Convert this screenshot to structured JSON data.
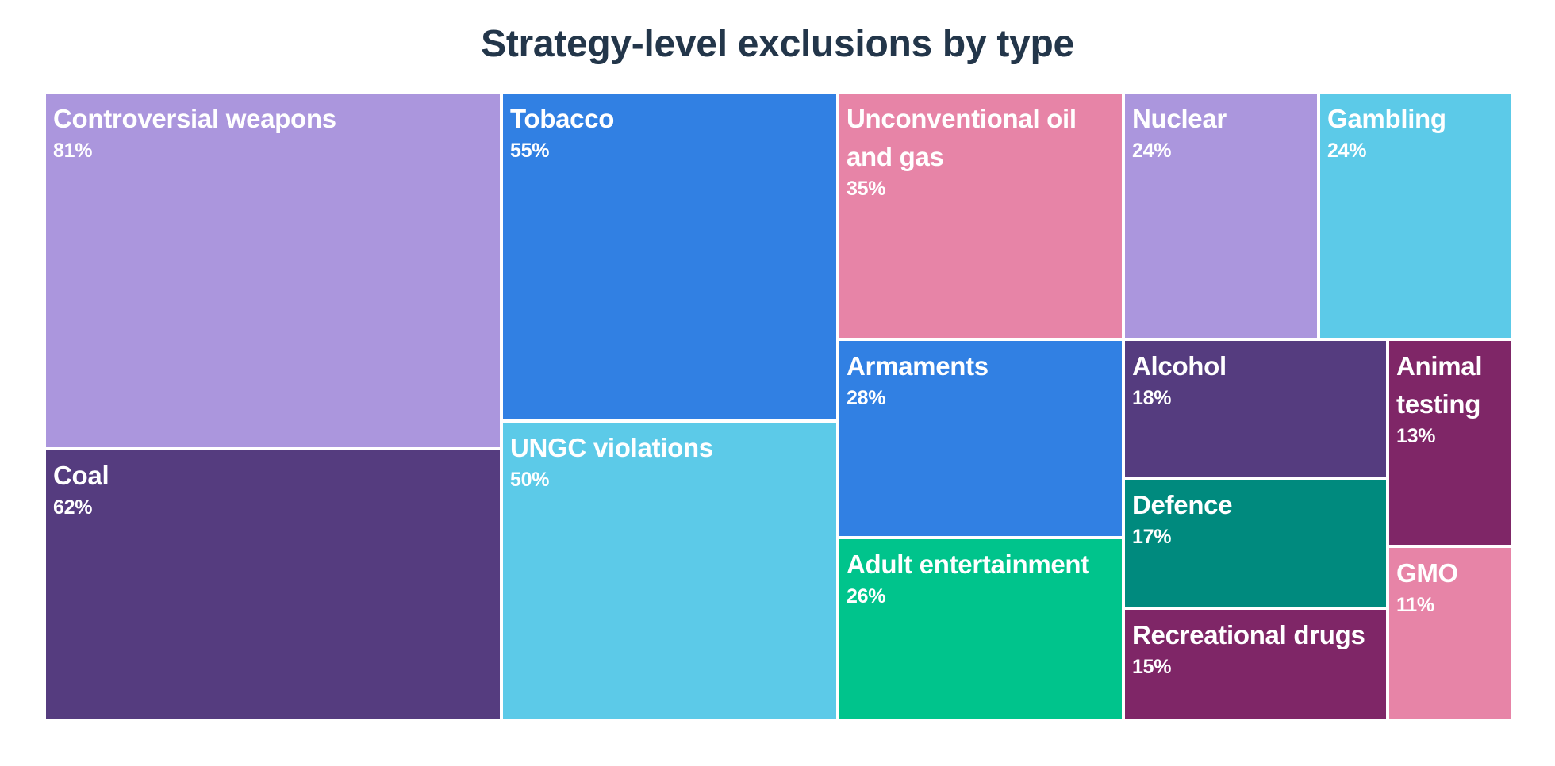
{
  "title": "Strategy-level exclusions by type",
  "chart_data": {
    "type": "treemap",
    "title": "Strategy-level exclusions by type",
    "value_unit": "%",
    "items": [
      {
        "key": "controversial-weapons",
        "label": [
          "Controversial weapons"
        ],
        "value": 81,
        "display": "81%",
        "color": "#ab96dd"
      },
      {
        "key": "coal",
        "label": [
          "Coal"
        ],
        "value": 62,
        "display": "62%",
        "color": "#553c7f"
      },
      {
        "key": "tobacco",
        "label": [
          "Tobacco"
        ],
        "value": 55,
        "display": "55%",
        "color": "#3180e3"
      },
      {
        "key": "ungc-violations",
        "label": [
          "UNGC violations"
        ],
        "value": 50,
        "display": "50%",
        "color": "#5ccae8"
      },
      {
        "key": "unconventional-oil-and-gas",
        "label": [
          "Unconventional oil",
          "and gas"
        ],
        "value": 35,
        "display": "35%",
        "color": "#e784a7"
      },
      {
        "key": "nuclear",
        "label": [
          "Nuclear"
        ],
        "value": 24,
        "display": "24%",
        "color": "#ab96dd"
      },
      {
        "key": "gambling",
        "label": [
          "Gambling"
        ],
        "value": 24,
        "display": "24%",
        "color": "#5ccae8"
      },
      {
        "key": "armaments",
        "label": [
          "Armaments"
        ],
        "value": 28,
        "display": "28%",
        "color": "#3180e3"
      },
      {
        "key": "adult-entertainment",
        "label": [
          "Adult entertainment"
        ],
        "value": 26,
        "display": "26%",
        "color": "#00c48c"
      },
      {
        "key": "alcohol",
        "label": [
          "Alcohol"
        ],
        "value": 18,
        "display": "18%",
        "color": "#553c7f"
      },
      {
        "key": "defence",
        "label": [
          "Defence"
        ],
        "value": 17,
        "display": "17%",
        "color": "#008a7e"
      },
      {
        "key": "recreational-drugs",
        "label": [
          "Recreational drugs"
        ],
        "value": 15,
        "display": "15%",
        "color": "#7f2667"
      },
      {
        "key": "animal-testing",
        "label": [
          "Animal",
          "testing"
        ],
        "value": 13,
        "display": "13%",
        "color": "#7f2667"
      },
      {
        "key": "gmo",
        "label": [
          "GMO"
        ],
        "value": 11,
        "display": "11%",
        "color": "#e784a7"
      }
    ]
  }
}
